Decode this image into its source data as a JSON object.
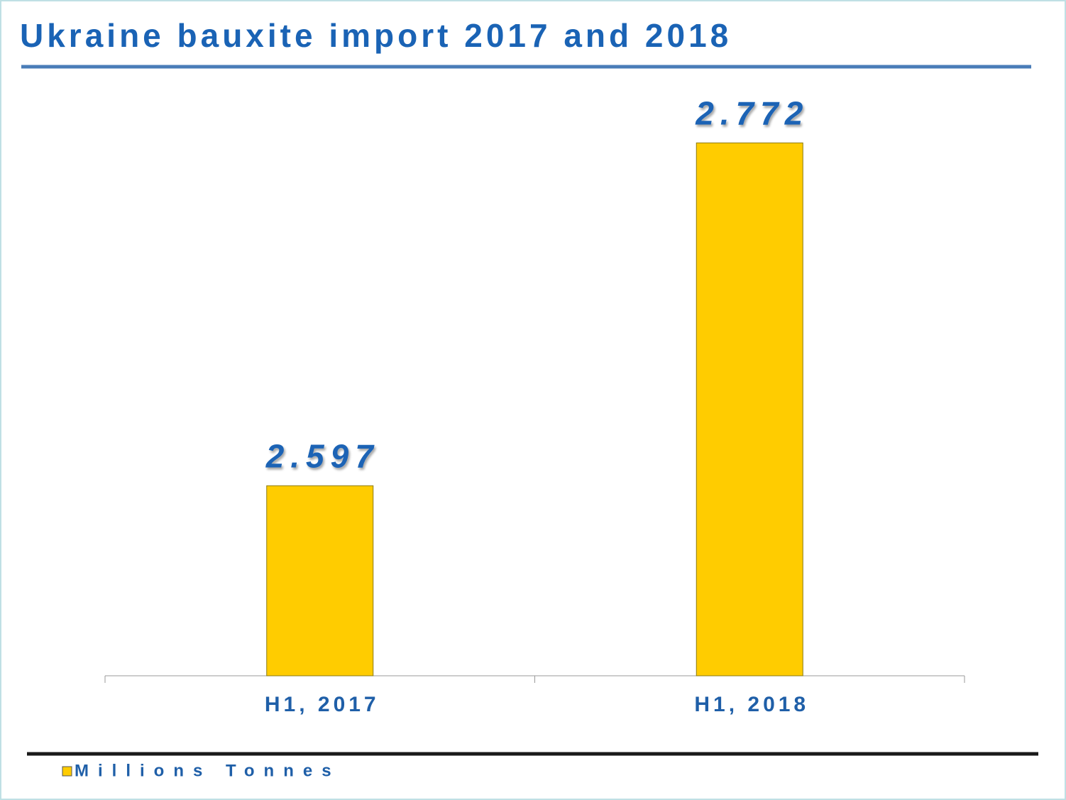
{
  "chart_data": {
    "type": "bar",
    "title": "Ukraine bauxite import 2017 and 2018",
    "categories": [
      "H1, 2017",
      "H1, 2018"
    ],
    "series": [
      {
        "name": "Millions Tonnes",
        "color": "#ffcc00",
        "values": [
          2.597,
          2.772
        ]
      }
    ],
    "ylim": [
      2.5,
      2.8
    ],
    "legend": "bottom-left"
  }
}
